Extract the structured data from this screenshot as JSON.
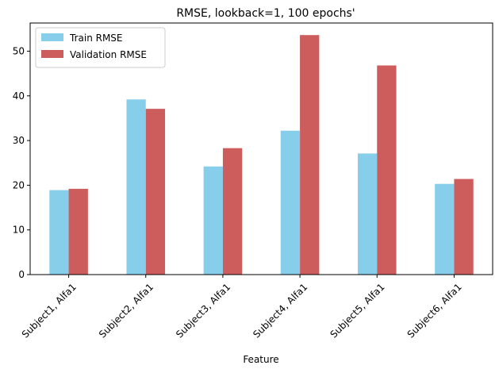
{
  "chart_data": {
    "type": "bar",
    "title": "RMSE, lookback=1, 100 epochs'",
    "xlabel": "Feature",
    "ylabel": "",
    "categories": [
      "Subject1, Alfa1",
      "Subject2, Alfa1",
      "Subject3, Alfa1",
      "Subject4, Alfa1",
      "Subject5, Alfa1",
      "Subject6, Alfa1"
    ],
    "series": [
      {
        "name": "Train RMSE",
        "color": "#87ceeb",
        "values": [
          18.9,
          39.2,
          24.2,
          32.2,
          27.1,
          20.3
        ]
      },
      {
        "name": "Validation RMSE",
        "color": "#cd5c5c",
        "values": [
          19.2,
          37.1,
          28.3,
          53.6,
          46.8,
          21.4
        ]
      }
    ],
    "ylim": [
      0,
      56.3
    ],
    "yticks": [
      0,
      10,
      20,
      30,
      40,
      50
    ],
    "legend_position": "top-left",
    "grid": false
  }
}
